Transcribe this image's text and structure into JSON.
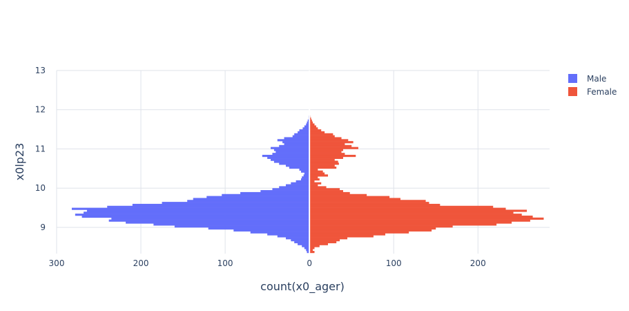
{
  "chart_data": {
    "type": "bar",
    "orientation": "horizontal-population-pyramid",
    "xlabel": "count(x0_ager)",
    "ylabel": "x0lp23",
    "xlim": [
      -300,
      285
    ],
    "ylim": [
      8.33,
      13.0
    ],
    "x_tick_values": [
      -300,
      -200,
      -100,
      0,
      100,
      200
    ],
    "x_tick_labels": [
      "300",
      "200",
      "100",
      "0",
      "100",
      "200"
    ],
    "y_tick_values": [
      9,
      10,
      11,
      12,
      13
    ],
    "y_tick_labels": [
      "9",
      "10",
      "11",
      "12",
      "13"
    ],
    "grid": true,
    "legend_position": "top-right",
    "bin_width": 0.05,
    "bins_start": 8.35,
    "series": [
      {
        "name": "Male",
        "color": "#636efa",
        "values": [
          3,
          4,
          6,
          9,
          14,
          18,
          22,
          28,
          38,
          50,
          70,
          90,
          120,
          160,
          185,
          218,
          238,
          235,
          270,
          278,
          268,
          264,
          282,
          240,
          210,
          175,
          145,
          138,
          122,
          104,
          82,
          58,
          44,
          36,
          28,
          22,
          16,
          10,
          9,
          7,
          6,
          10,
          12,
          24,
          28,
          36,
          42,
          46,
          50,
          56,
          44,
          40,
          42,
          46,
          36,
          30,
          32,
          38,
          30,
          20,
          18,
          14,
          12,
          8,
          6,
          4,
          3,
          2,
          1,
          1
        ]
      },
      {
        "name": "Female",
        "color": "#ef553b",
        "values": [
          6,
          4,
          6,
          12,
          22,
          32,
          36,
          45,
          76,
          90,
          118,
          145,
          150,
          170,
          222,
          240,
          262,
          278,
          265,
          252,
          242,
          258,
          233,
          218,
          155,
          142,
          138,
          108,
          95,
          68,
          48,
          40,
          36,
          20,
          10,
          14,
          6,
          12,
          10,
          22,
          18,
          16,
          10,
          32,
          30,
          35,
          34,
          30,
          40,
          55,
          42,
          38,
          40,
          58,
          50,
          42,
          52,
          46,
          38,
          30,
          28,
          18,
          14,
          10,
          8,
          6,
          4,
          3,
          2,
          1
        ]
      }
    ]
  }
}
